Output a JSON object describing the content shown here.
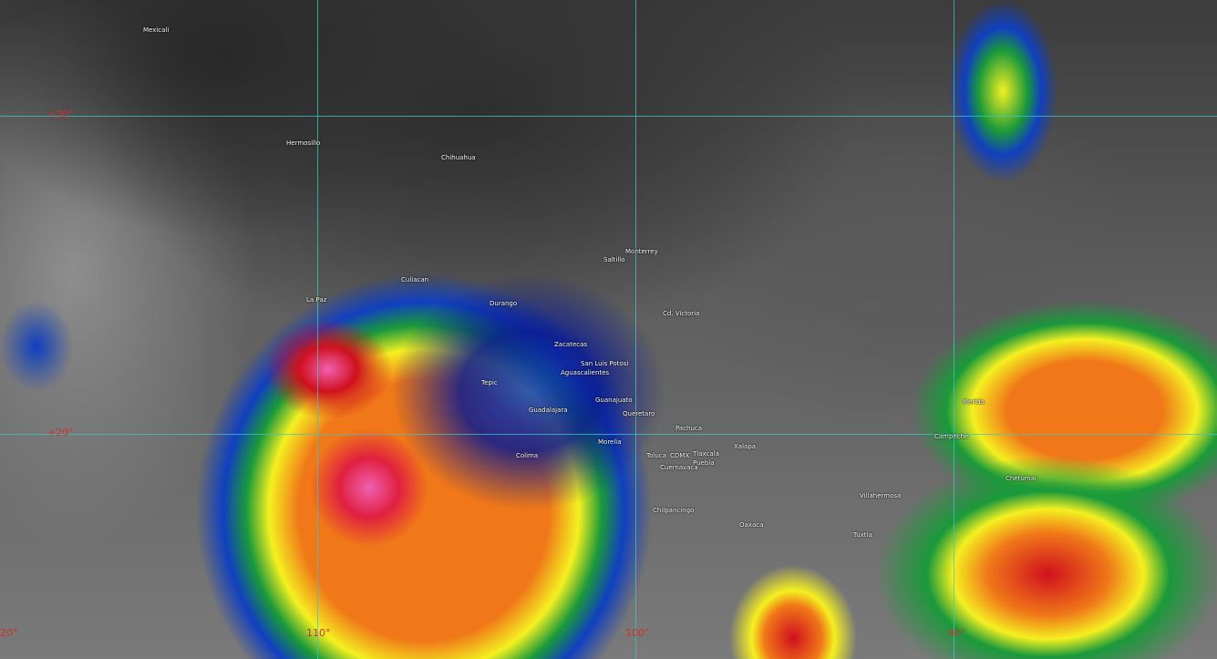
{
  "colors": {
    "grid": "#3fc6c6",
    "label": "#d0302a",
    "cold_top_red": "#d0101e",
    "orange": "#f07818",
    "yellow": "#f4f020",
    "green": "#1a9a3a",
    "blue": "#1040c0",
    "navy": "#0a1a90",
    "magenta": "#f060b0"
  },
  "lat_labels": [
    "+30°",
    "+20°"
  ],
  "lon_labels": [
    "20°",
    "110°",
    "100°",
    "90°"
  ],
  "cities": [
    "Mexicali",
    "Hermosillo",
    "Chihuahua",
    "Culiacan",
    "La Paz",
    "Durango",
    "Monterrey",
    "Saltillo",
    "Cd. Victoria",
    "Zacatecas",
    "San Luis Potosi",
    "Aguascalientes",
    "Tepic",
    "Guadalajara",
    "Guanajuato",
    "Queretaro",
    "Pachuca",
    "Morelia",
    "Toluca",
    "CDMX",
    "Tlaxcala",
    "Xalapa",
    "Puebla",
    "Cuernavaca",
    "Colima",
    "Chilpancingo",
    "Oaxaca",
    "Villahermosa",
    "Tuxtla",
    "Merida",
    "Campeche",
    "Chetumal"
  ]
}
